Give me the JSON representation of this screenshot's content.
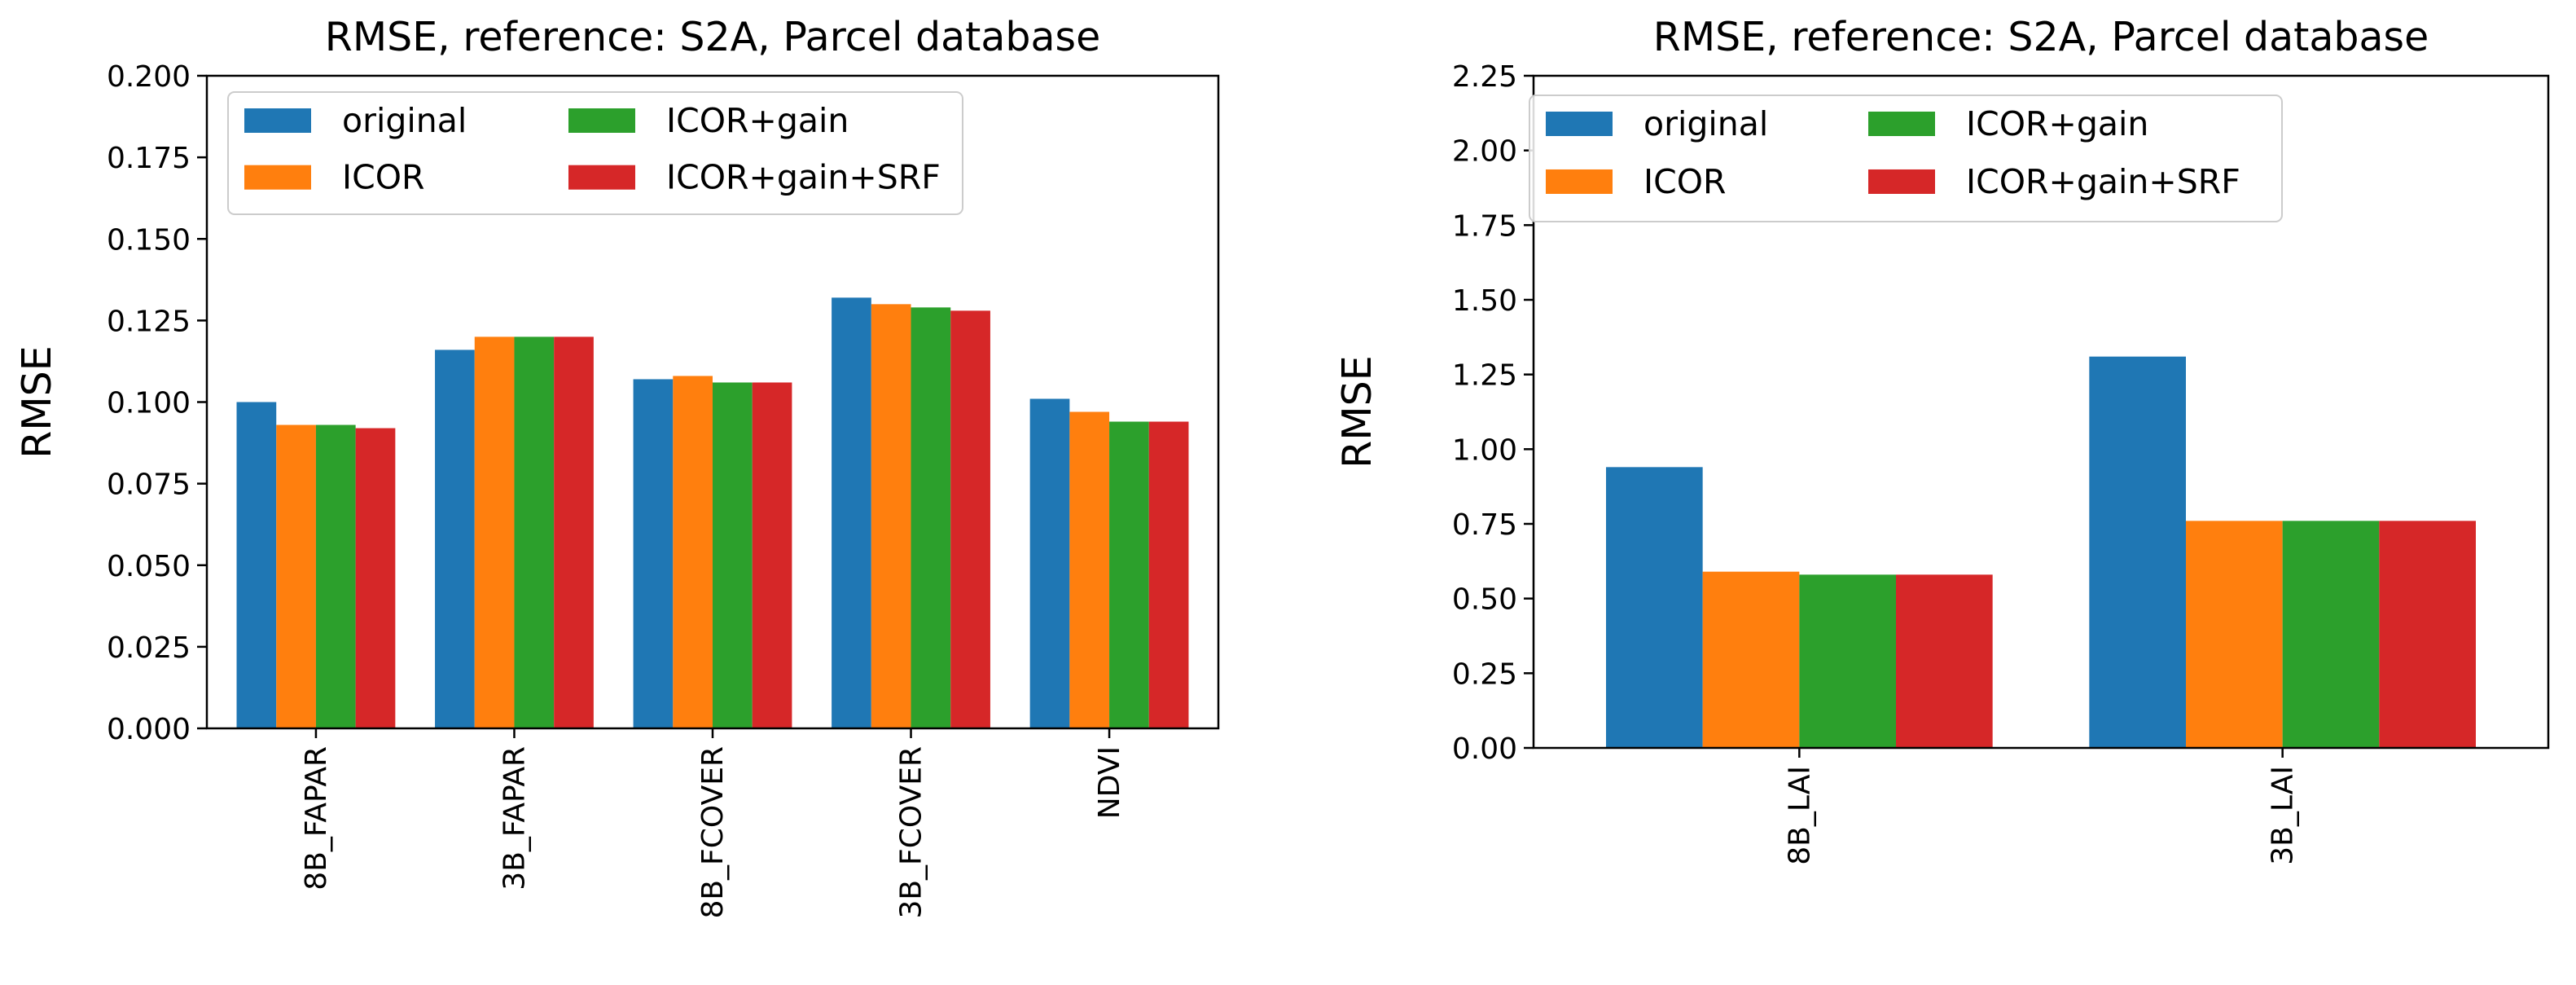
{
  "chart_data": [
    {
      "type": "bar",
      "title": "RMSE, reference: S2A, Parcel database",
      "xlabel": "",
      "ylabel": "RMSE",
      "ylim": [
        0,
        0.2
      ],
      "yticks": [
        "0.000",
        "0.025",
        "0.050",
        "0.075",
        "0.100",
        "0.125",
        "0.150",
        "0.175",
        "0.200"
      ],
      "categories": [
        "8B_FAPAR",
        "3B_FAPAR",
        "8B_FCOVER",
        "3B_FCOVER",
        "NDVI"
      ],
      "legend_location": "upper-left",
      "series": [
        {
          "name": "original",
          "color": "#1f77b4",
          "values": [
            0.1,
            0.116,
            0.107,
            0.132,
            0.101
          ]
        },
        {
          "name": "ICOR",
          "color": "#ff7f0e",
          "values": [
            0.093,
            0.12,
            0.108,
            0.13,
            0.097
          ]
        },
        {
          "name": "ICOR+gain",
          "color": "#2ca02c",
          "values": [
            0.093,
            0.12,
            0.106,
            0.129,
            0.094
          ]
        },
        {
          "name": "ICOR+gain+SRF",
          "color": "#d62728",
          "values": [
            0.092,
            0.12,
            0.106,
            0.128,
            0.094
          ]
        }
      ]
    },
    {
      "type": "bar",
      "title": "RMSE, reference: S2A, Parcel database",
      "xlabel": "",
      "ylabel": "RMSE",
      "ylim": [
        0,
        2.25
      ],
      "yticks": [
        "0.00",
        "0.25",
        "0.50",
        "0.75",
        "1.00",
        "1.25",
        "1.50",
        "1.75",
        "2.00",
        "2.25"
      ],
      "categories": [
        "8B_LAI",
        "3B_LAI"
      ],
      "legend_location": "upper-left",
      "series": [
        {
          "name": "original",
          "color": "#1f77b4",
          "values": [
            0.94,
            1.31
          ]
        },
        {
          "name": "ICOR",
          "color": "#ff7f0e",
          "values": [
            0.59,
            0.76
          ]
        },
        {
          "name": "ICOR+gain",
          "color": "#2ca02c",
          "values": [
            0.58,
            0.76
          ]
        },
        {
          "name": "ICOR+gain+SRF",
          "color": "#d62728",
          "values": [
            0.58,
            0.76
          ]
        }
      ]
    }
  ]
}
